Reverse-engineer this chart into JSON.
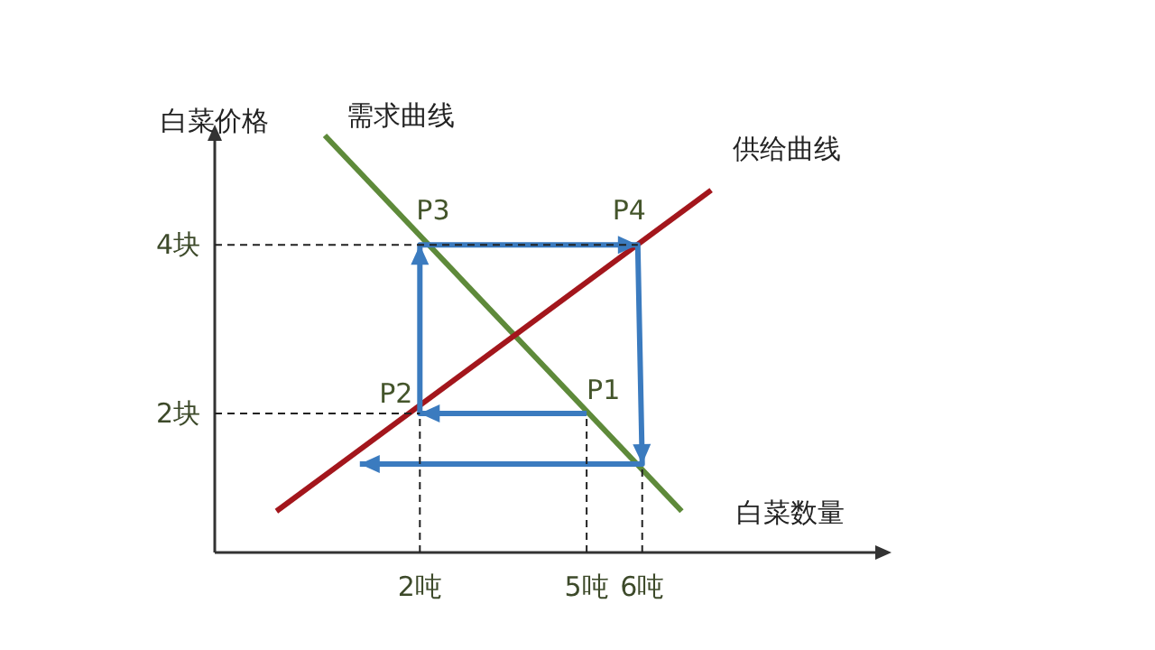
{
  "chart_data": {
    "type": "line",
    "xlabel": "白菜数量",
    "ylabel": "白菜价格",
    "xlim": [
      -1.69,
      10.29
    ],
    "ylim": [
      0.35,
      5.3
    ],
    "xticks": [
      {
        "value": 2,
        "label": "2吨"
      },
      {
        "value": 5,
        "label": "5吨"
      },
      {
        "value": 6,
        "label": "6吨"
      }
    ],
    "yticks": [
      {
        "value": 2,
        "label": "2块"
      },
      {
        "value": 4,
        "label": "4块"
      }
    ],
    "grid": false,
    "legend": false,
    "marker": "none",
    "series": [
      {
        "name": "需求曲线",
        "color": "#5e8a3a",
        "x": [
          0.29,
          6.71
        ],
        "values": [
          5.3,
          0.84
        ]
      },
      {
        "name": "供给曲线",
        "color": "#a3161c",
        "x": [
          -0.58,
          7.24
        ],
        "values": [
          0.84,
          4.65
        ]
      },
      {
        "color": "#3b7bbf",
        "x": [
          5,
          2,
          2,
          5.92,
          6,
          0.92
        ],
        "values": [
          2,
          2,
          4,
          4,
          1.4,
          1.4
        ]
      },
      {
        "color": "#222222",
        "line_style": "dashed",
        "x": [
          -1.69,
          5.92
        ],
        "values": [
          4,
          4
        ]
      },
      {
        "color": "#222222",
        "line_style": "dashed",
        "x": [
          -1.69,
          2
        ],
        "values": [
          2,
          2
        ]
      },
      {
        "color": "#222222",
        "line_style": "dashed",
        "x": [
          2,
          2
        ],
        "values": [
          0.35,
          2
        ]
      },
      {
        "color": "#222222",
        "line_style": "dashed",
        "x": [
          5,
          5
        ],
        "values": [
          0.35,
          2
        ]
      },
      {
        "color": "#222222",
        "line_style": "dashed",
        "x": [
          6,
          6
        ],
        "values": [
          0.35,
          1.4
        ]
      }
    ],
    "annotations": [
      {
        "text": "P1",
        "x": 5,
        "y": 2
      },
      {
        "text": "P2",
        "x": 2,
        "y": 2
      },
      {
        "text": "P3",
        "x": 2,
        "y": 4
      },
      {
        "text": "P4",
        "x": 5.92,
        "y": 4
      }
    ]
  }
}
